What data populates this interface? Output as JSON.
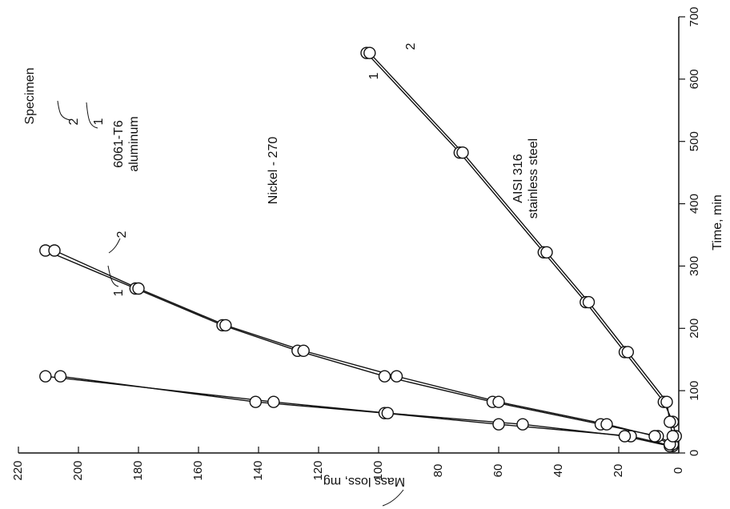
{
  "chart_data": {
    "type": "line",
    "orientation": "rotated-90-ccw",
    "xlabel": "Mass loss, mg",
    "ylabel": "Time, min",
    "xlim": [
      0,
      220
    ],
    "ylim": [
      0,
      700
    ],
    "x_ticks": [
      0,
      20,
      40,
      60,
      80,
      100,
      120,
      140,
      160,
      180,
      200,
      220
    ],
    "y_ticks": [
      0,
      100,
      200,
      300,
      400,
      500,
      600,
      700
    ],
    "grid": false,
    "legend_header": "Specimen",
    "series": [
      {
        "material": "6061-T6 aluminum",
        "specimens": [
          {
            "name": "1",
            "points": [
              [
                2,
                11
              ],
              [
                16,
                27
              ],
              [
                60,
                46
              ],
              [
                98,
                64
              ],
              [
                141,
                82
              ],
              [
                206,
                123
              ]
            ]
          },
          {
            "name": "2",
            "points": [
              [
                3,
                11
              ],
              [
                18,
                27
              ],
              [
                52,
                46
              ],
              [
                97,
                64
              ],
              [
                135,
                82
              ],
              [
                211,
                123
              ]
            ]
          }
        ]
      },
      {
        "material": "Nickel - 270",
        "specimens": [
          {
            "name": "1",
            "points": [
              [
                2,
                14
              ],
              [
                7,
                27
              ],
              [
                26,
                46
              ],
              [
                62,
                82
              ],
              [
                98,
                123
              ],
              [
                127,
                164
              ],
              [
                152,
                205
              ],
              [
                181,
                264
              ],
              [
                211,
                325
              ]
            ]
          },
          {
            "name": "2",
            "points": [
              [
                3,
                14
              ],
              [
                8,
                27
              ],
              [
                24,
                46
              ],
              [
                60,
                82
              ],
              [
                94,
                123
              ],
              [
                125,
                164
              ],
              [
                151,
                205
              ],
              [
                180,
                264
              ],
              [
                208,
                325
              ]
            ]
          }
        ]
      },
      {
        "material": "AISI 316 stainless steel",
        "specimens": [
          {
            "name": "1",
            "points": [
              [
                1,
                27
              ],
              [
                2,
                50
              ],
              [
                5,
                82
              ],
              [
                18,
                162
              ],
              [
                31,
                242
              ],
              [
                45,
                322
              ],
              [
                73,
                482
              ],
              [
                104,
                642
              ]
            ]
          },
          {
            "name": "2",
            "points": [
              [
                2,
                27
              ],
              [
                3,
                50
              ],
              [
                4,
                82
              ],
              [
                17,
                162
              ],
              [
                30,
                242
              ],
              [
                44,
                322
              ],
              [
                72,
                482
              ],
              [
                103,
                642
              ]
            ]
          }
        ]
      }
    ],
    "annotations": {
      "specimen": "Specimen",
      "al_line1": "6061-T6",
      "al_line2": "aluminum",
      "ni": "Nickel - 270",
      "ss_line1": "AISI 316",
      "ss_line2": "stainless steel",
      "al_1": "1",
      "al_2": "2",
      "ni_1": "1",
      "ni_2": "2",
      "ss_1": "1",
      "ss_2": "2"
    }
  }
}
